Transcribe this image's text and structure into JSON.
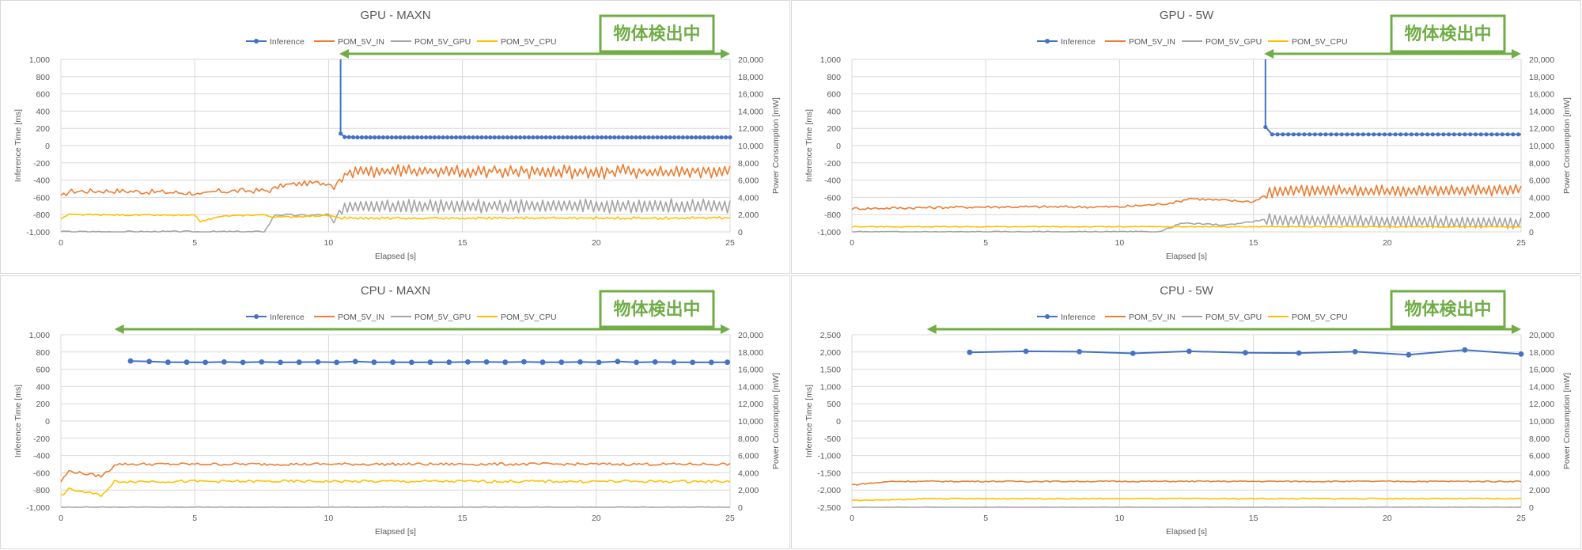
{
  "colors": {
    "inference": "#4472c4",
    "pom_in": "#ed7d31",
    "pom_gpu": "#a5a5a5",
    "pom_cpu": "#ffc000",
    "badge": "#70ad47",
    "grid": "#d9d9d9",
    "text": "#595959"
  },
  "chart_data": [
    {
      "type": "line",
      "title": "GPU - MAXN",
      "xlabel": "Elapsed [s]",
      "ylabel_left": "Inference Time [ms]",
      "ylabel_right": "Power Consumption [mW]",
      "xlim": [
        0,
        25
      ],
      "xticks": [
        0,
        5,
        10,
        15,
        20,
        25
      ],
      "ylim_left": [
        -1000,
        1000
      ],
      "yticks_left": [
        -1000,
        -800,
        -600,
        -400,
        -200,
        0,
        200,
        400,
        600,
        800,
        1000
      ],
      "ylim_right": [
        0,
        20000
      ],
      "yticks_right": [
        0,
        2000,
        4000,
        6000,
        8000,
        10000,
        12000,
        14000,
        16000,
        18000,
        20000
      ],
      "legend": [
        "Inference",
        "POM_5V_IN",
        "POM_5V_GPU",
        "POM_5V_CPU"
      ],
      "legend_position": "top",
      "annotation": {
        "text": "物体検出中",
        "arrow_from": 10.4,
        "arrow_to": 25
      },
      "inference_points": [
        [
          10.45,
          1000
        ],
        [
          10.45,
          140
        ],
        [
          10.6,
          100
        ],
        [
          11.0,
          95
        ],
        [
          12.0,
          95
        ],
        [
          14.0,
          95
        ],
        [
          16.0,
          95
        ],
        [
          18.0,
          95
        ],
        [
          20.0,
          95
        ],
        [
          22.0,
          95
        ],
        [
          25.0,
          95
        ]
      ],
      "series": [
        {
          "name": "POM_5V_IN",
          "pattern": [
            [
              0,
              4000
            ],
            [
              0.3,
              4700
            ],
            [
              2,
              4750
            ],
            [
              5,
              4500
            ],
            [
              5.2,
              4200
            ],
            [
              5.8,
              4700
            ],
            [
              7.8,
              4800
            ],
            [
              8.3,
              5400
            ],
            [
              9.0,
              5600
            ],
            [
              10.0,
              5700
            ],
            [
              10.2,
              5200
            ],
            [
              10.4,
              6300
            ],
            [
              10.8,
              7000
            ],
            [
              25,
              7000
            ]
          ],
          "jitter": 300,
          "osc_from": 10.4,
          "osc_amp": 600
        },
        {
          "name": "POM_5V_GPU",
          "pattern": [
            [
              0,
              0
            ],
            [
              5,
              0
            ],
            [
              7.6,
              0
            ],
            [
              8.0,
              2000
            ],
            [
              9.0,
              1900
            ],
            [
              10.0,
              2000
            ],
            [
              10.2,
              1000
            ],
            [
              10.4,
              2500
            ],
            [
              10.8,
              3000
            ],
            [
              25,
              3000
            ]
          ],
          "jitter": 120,
          "osc_from": 10.4,
          "osc_amp": 750
        },
        {
          "name": "POM_5V_CPU",
          "pattern": [
            [
              0,
              1500
            ],
            [
              0.3,
              2000
            ],
            [
              5,
              1900
            ],
            [
              5.2,
              1200
            ],
            [
              6.0,
              1800
            ],
            [
              7.5,
              2000
            ],
            [
              8.0,
              1700
            ],
            [
              10,
              1900
            ],
            [
              10.4,
              1600
            ],
            [
              25,
              1600
            ]
          ],
          "jitter": 80,
          "osc_from": 10.4,
          "osc_amp": 80
        }
      ]
    },
    {
      "type": "line",
      "title": "GPU - 5W",
      "xlabel": "Elapsed [s]",
      "ylabel_left": "Inference Time [ms]",
      "ylabel_right": "Power Consumption [mW]",
      "xlim": [
        0,
        25
      ],
      "xticks": [
        0,
        5,
        10,
        15,
        20,
        25
      ],
      "ylim_left": [
        -1000,
        1000
      ],
      "yticks_left": [
        -1000,
        -800,
        -600,
        -400,
        -200,
        0,
        200,
        400,
        600,
        800,
        1000
      ],
      "ylim_right": [
        0,
        20000
      ],
      "yticks_right": [
        0,
        2000,
        4000,
        6000,
        8000,
        10000,
        12000,
        14000,
        16000,
        18000,
        20000
      ],
      "legend": [
        "Inference",
        "POM_5V_IN",
        "POM_5V_GPU",
        "POM_5V_CPU"
      ],
      "legend_position": "top",
      "annotation": {
        "text": "物体検出中",
        "arrow_from": 15.4,
        "arrow_to": 25
      },
      "inference_points": [
        [
          15.45,
          1000
        ],
        [
          15.45,
          215
        ],
        [
          15.7,
          130
        ],
        [
          16.0,
          130
        ],
        [
          18.0,
          130
        ],
        [
          20.0,
          130
        ],
        [
          22.0,
          130
        ],
        [
          25.0,
          130
        ]
      ],
      "series": [
        {
          "name": "POM_5V_IN",
          "pattern": [
            [
              0,
              2700
            ],
            [
              5,
              2900
            ],
            [
              10,
              2900
            ],
            [
              11.5,
              3200
            ],
            [
              12.2,
              3500
            ],
            [
              12.6,
              3900
            ],
            [
              13.5,
              3700
            ],
            [
              15,
              3500
            ],
            [
              15.4,
              4200
            ],
            [
              15.8,
              4800
            ],
            [
              25,
              4800
            ]
          ],
          "jitter": 150,
          "osc_from": 15.4,
          "osc_amp": 600
        },
        {
          "name": "POM_5V_GPU",
          "pattern": [
            [
              0,
              0
            ],
            [
              11.5,
              0
            ],
            [
              12.3,
              1000
            ],
            [
              14,
              800
            ],
            [
              15.4,
              1400
            ],
            [
              25,
              1000
            ]
          ],
          "jitter": 80,
          "osc_from": 15.4,
          "osc_amp": 700
        },
        {
          "name": "POM_5V_CPU",
          "pattern": [
            [
              0,
              600
            ],
            [
              25,
              600
            ]
          ],
          "jitter": 50,
          "osc_from": 25,
          "osc_amp": 0
        }
      ]
    },
    {
      "type": "line",
      "title": "CPU - MAXN",
      "xlabel": "Elapsed [s]",
      "ylabel_left": "Inference Time [ms]",
      "ylabel_right": "Power Consumption [mW]",
      "xlim": [
        0,
        25
      ],
      "xticks": [
        0,
        5,
        10,
        15,
        20,
        25
      ],
      "ylim_left": [
        -1000,
        1000
      ],
      "yticks_left": [
        -1000,
        -800,
        -600,
        -400,
        -200,
        0,
        200,
        400,
        600,
        800,
        1000
      ],
      "ylim_right": [
        0,
        20000
      ],
      "yticks_right": [
        0,
        2000,
        4000,
        6000,
        8000,
        10000,
        12000,
        14000,
        16000,
        18000,
        20000
      ],
      "legend": [
        "Inference",
        "POM_5V_IN",
        "POM_5V_GPU",
        "POM_5V_CPU"
      ],
      "legend_position": "top",
      "annotation": {
        "text": "物体検出中",
        "arrow_from": 2,
        "arrow_to": 25
      },
      "inference_points": [
        [
          2.6,
          695
        ],
        [
          3.3,
          690
        ],
        [
          4.0,
          682
        ],
        [
          4.7,
          682
        ],
        [
          5.4,
          680
        ],
        [
          6.1,
          684
        ],
        [
          6.8,
          680
        ],
        [
          7.5,
          684
        ],
        [
          8.2,
          680
        ],
        [
          8.9,
          682
        ],
        [
          9.6,
          684
        ],
        [
          10.3,
          680
        ],
        [
          11.0,
          690
        ],
        [
          11.7,
          682
        ],
        [
          12.4,
          682
        ],
        [
          13.1,
          680
        ],
        [
          13.8,
          682
        ],
        [
          14.5,
          682
        ],
        [
          15.2,
          684
        ],
        [
          15.9,
          684
        ],
        [
          16.6,
          682
        ],
        [
          17.3,
          686
        ],
        [
          18.0,
          682
        ],
        [
          18.7,
          682
        ],
        [
          19.4,
          684
        ],
        [
          20.1,
          680
        ],
        [
          20.8,
          690
        ],
        [
          21.5,
          680
        ],
        [
          22.2,
          684
        ],
        [
          22.9,
          682
        ],
        [
          23.6,
          680
        ],
        [
          24.3,
          680
        ],
        [
          24.9,
          682
        ]
      ],
      "series": [
        {
          "name": "POM_5V_IN",
          "pattern": [
            [
              0,
              3000
            ],
            [
              0.3,
              4200
            ],
            [
              1.5,
              3600
            ],
            [
              1.9,
              4500
            ],
            [
              2.0,
              5000
            ],
            [
              25,
              5000
            ]
          ],
          "jitter": 150,
          "osc_from": 30,
          "osc_amp": 0
        },
        {
          "name": "POM_5V_CPU",
          "pattern": [
            [
              0,
              1300
            ],
            [
              0.3,
              2100
            ],
            [
              1.5,
              1400
            ],
            [
              1.9,
              2500
            ],
            [
              2.0,
              3000
            ],
            [
              25,
              3000
            ]
          ],
          "jitter": 150,
          "osc_from": 30,
          "osc_amp": 0
        },
        {
          "name": "POM_5V_GPU",
          "pattern": [
            [
              0,
              0
            ],
            [
              25,
              0
            ]
          ],
          "jitter": 60,
          "osc_from": 30,
          "osc_amp": 0
        }
      ]
    },
    {
      "type": "line",
      "title": "CPU - 5W",
      "xlabel": "Elapsed [s]",
      "ylabel_left": "Inference Time [ms]",
      "ylabel_right": "Power Consumption [mW]",
      "xlim": [
        0,
        25
      ],
      "xticks": [
        0,
        5,
        10,
        15,
        20,
        25
      ],
      "ylim_left": [
        -2500,
        2500
      ],
      "yticks_left": [
        -2500,
        -2000,
        -1500,
        -1000,
        -500,
        0,
        500,
        1000,
        1500,
        2000,
        2500
      ],
      "ylim_right": [
        0,
        20000
      ],
      "yticks_right": [
        0,
        2000,
        4000,
        6000,
        8000,
        10000,
        12000,
        14000,
        16000,
        18000,
        20000
      ],
      "legend": [
        "Inference",
        "POM_5V_IN",
        "POM_5V_GPU",
        "POM_5V_CPU"
      ],
      "legend_position": "top",
      "annotation": {
        "text": "物体検出中",
        "arrow_from": 2.8,
        "arrow_to": 25
      },
      "inference_points": [
        [
          4.4,
          1990
        ],
        [
          6.5,
          2020
        ],
        [
          8.5,
          2010
        ],
        [
          10.5,
          1960
        ],
        [
          12.6,
          2020
        ],
        [
          14.7,
          1980
        ],
        [
          16.7,
          1970
        ],
        [
          18.8,
          2010
        ],
        [
          20.8,
          1920
        ],
        [
          22.9,
          2060
        ],
        [
          25.0,
          1940
        ]
      ],
      "series": [
        {
          "name": "POM_5V_IN",
          "pattern": [
            [
              0,
              2600
            ],
            [
              1.5,
              3000
            ],
            [
              25,
              3000
            ]
          ],
          "jitter": 70,
          "osc_from": 30,
          "osc_amp": 0
        },
        {
          "name": "POM_5V_CPU",
          "pattern": [
            [
              0,
              800
            ],
            [
              2.3,
              900
            ],
            [
              2.6,
              1000
            ],
            [
              25,
              1000
            ]
          ],
          "jitter": 60,
          "osc_from": 30,
          "osc_amp": 0
        },
        {
          "name": "POM_5V_GPU",
          "pattern": [
            [
              0,
              0
            ],
            [
              25,
              0
            ]
          ],
          "jitter": 30,
          "osc_from": 30,
          "osc_amp": 0
        }
      ]
    }
  ]
}
